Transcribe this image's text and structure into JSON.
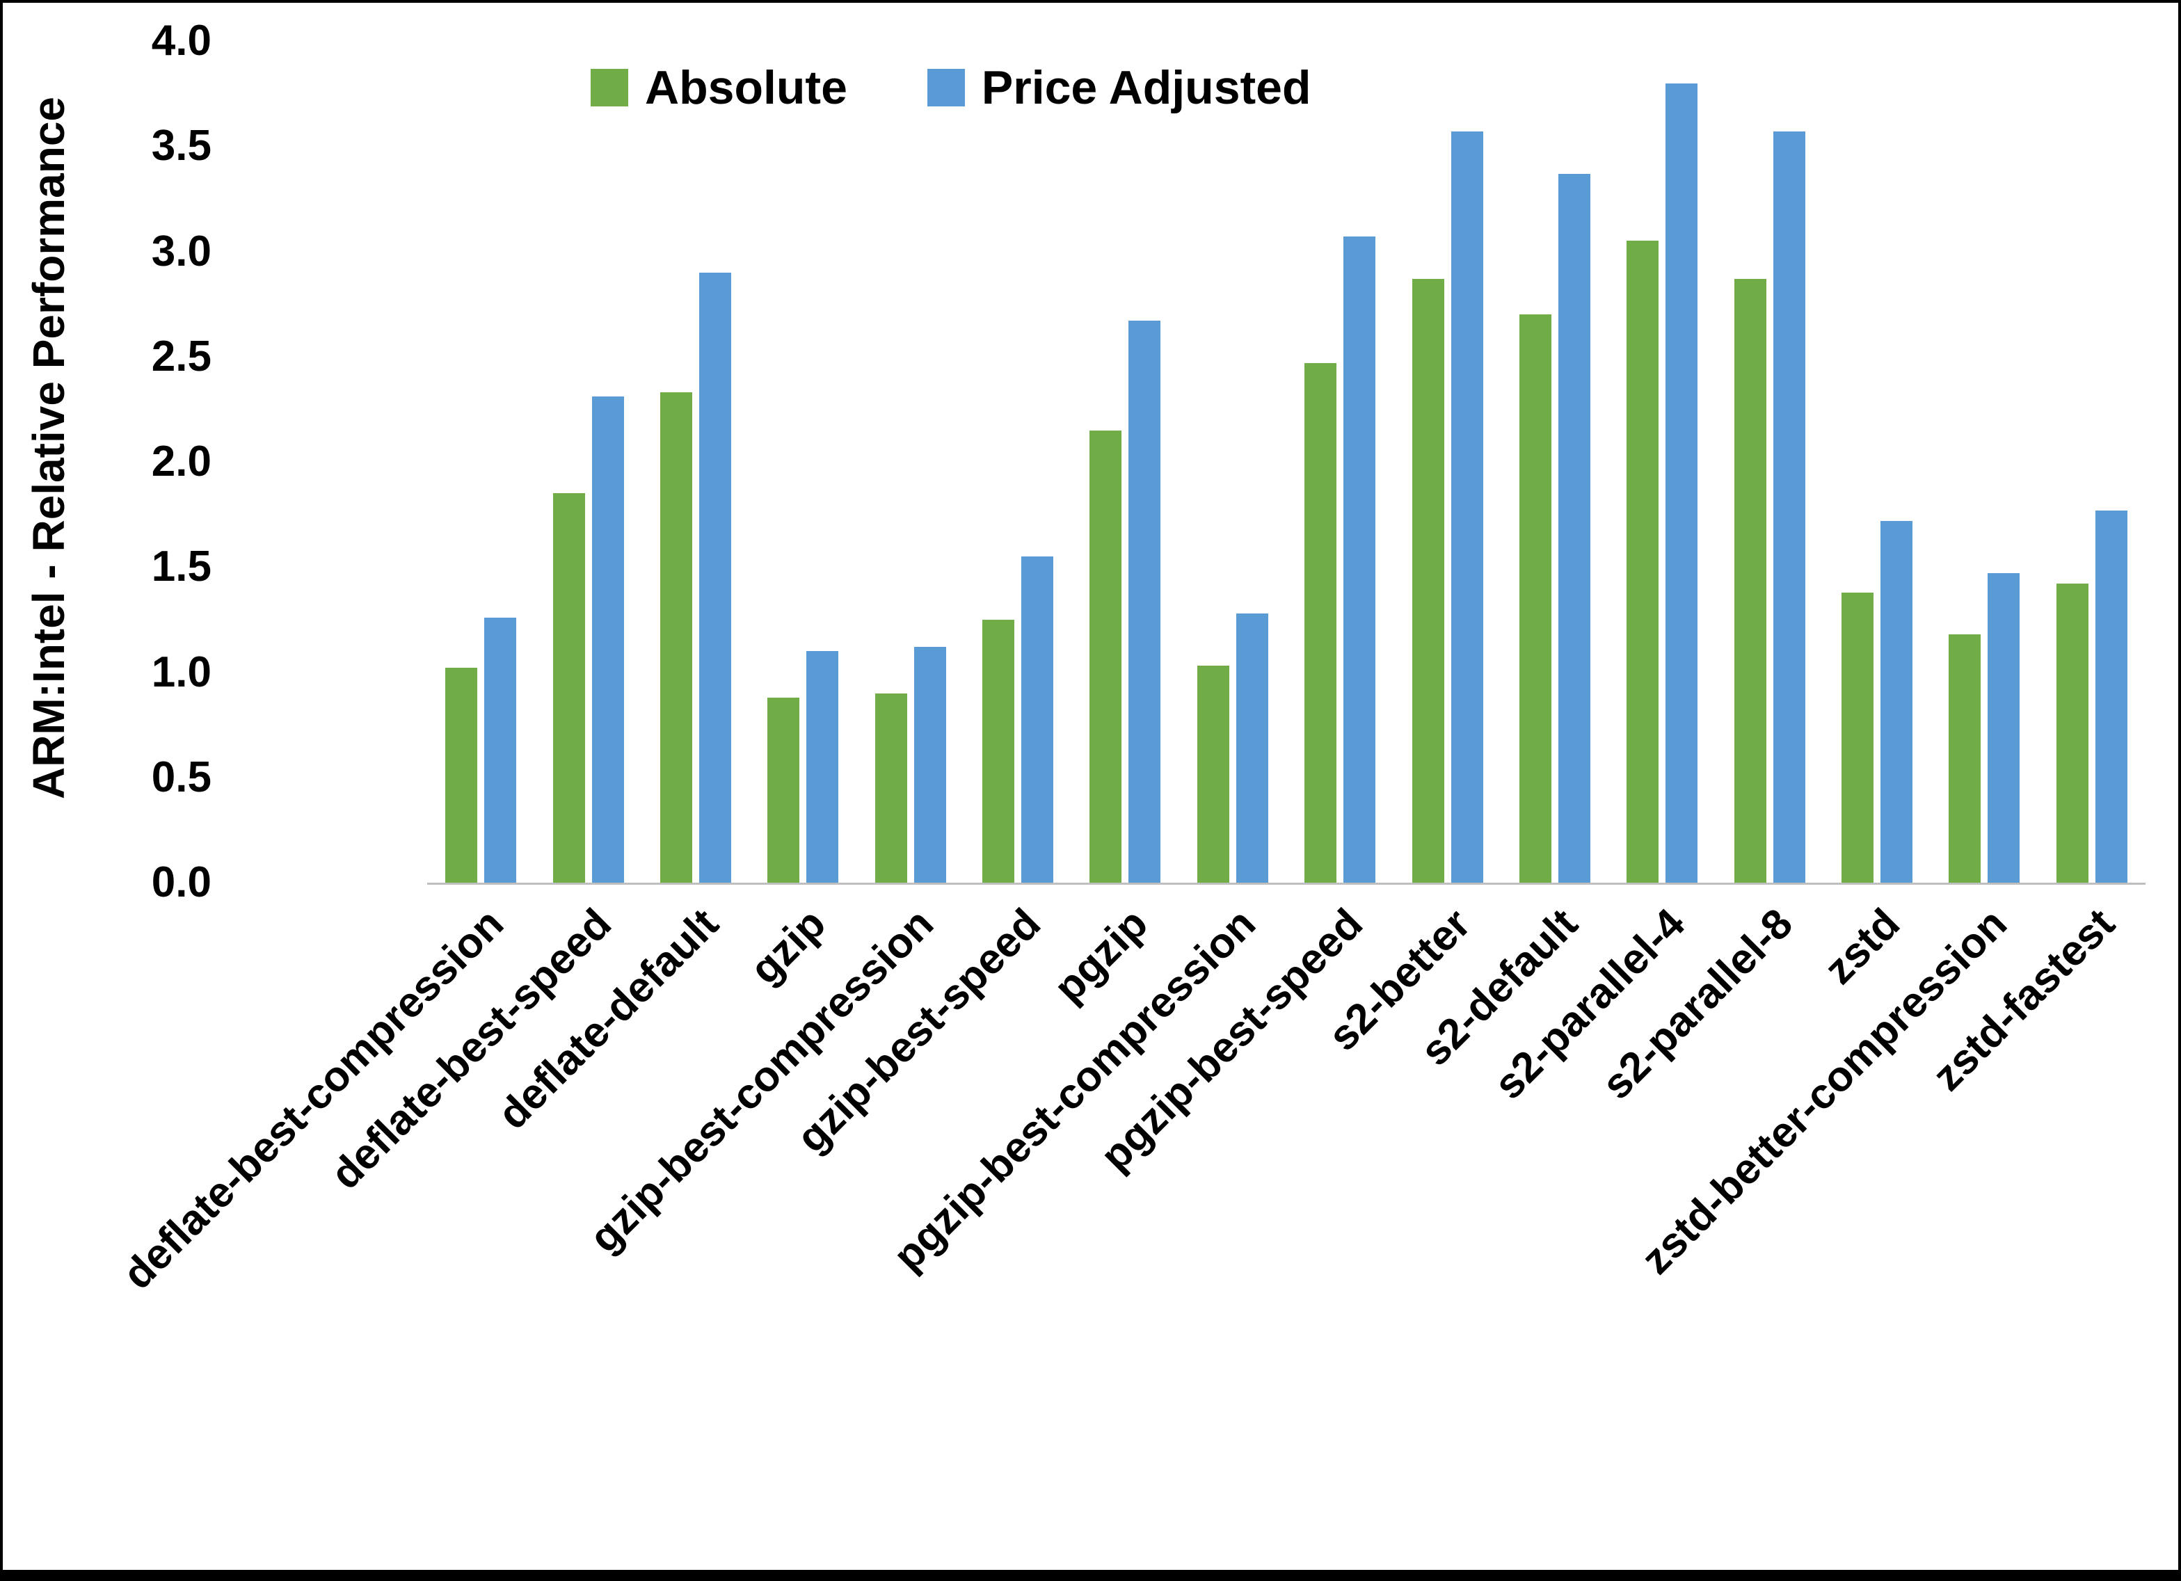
{
  "figure": {
    "background": "#FFFFFF",
    "border_color": "#000000",
    "axis_line_color": "#BFBFBF"
  },
  "chart_data": {
    "type": "bar",
    "title": "",
    "xlabel": "",
    "ylabel": "ARM:Intel - Relative Performance",
    "ylim": [
      0,
      4.0
    ],
    "ytick_step": 0.5,
    "ytick_decimals": 1,
    "grid": false,
    "legend_position": "top",
    "categories": [
      "deflate-best-compression",
      "deflate-best-speed",
      "deflate-default",
      "gzip",
      "gzip-best-compression",
      "gzip-best-speed",
      "pgzip",
      "pgzip-best-compression",
      "pgzip-best-speed",
      "s2-better",
      "s2-default",
      "s2-parallel-4",
      "s2-parallel-8",
      "zstd",
      "zstd-better-compression",
      "zstd-fastest"
    ],
    "series": [
      {
        "name": "Absolute",
        "color": "#70AD47",
        "values": [
          1.02,
          1.85,
          2.33,
          0.88,
          0.9,
          1.25,
          2.15,
          1.03,
          2.47,
          2.87,
          2.7,
          3.05,
          2.87,
          1.38,
          1.18,
          1.42
        ]
      },
      {
        "name": "Price Adjusted",
        "color": "#5B9BD5",
        "values": [
          1.26,
          2.31,
          2.9,
          1.1,
          1.12,
          1.55,
          2.67,
          1.28,
          3.07,
          3.57,
          3.37,
          3.8,
          3.57,
          1.72,
          1.47,
          1.77
        ]
      }
    ]
  }
}
